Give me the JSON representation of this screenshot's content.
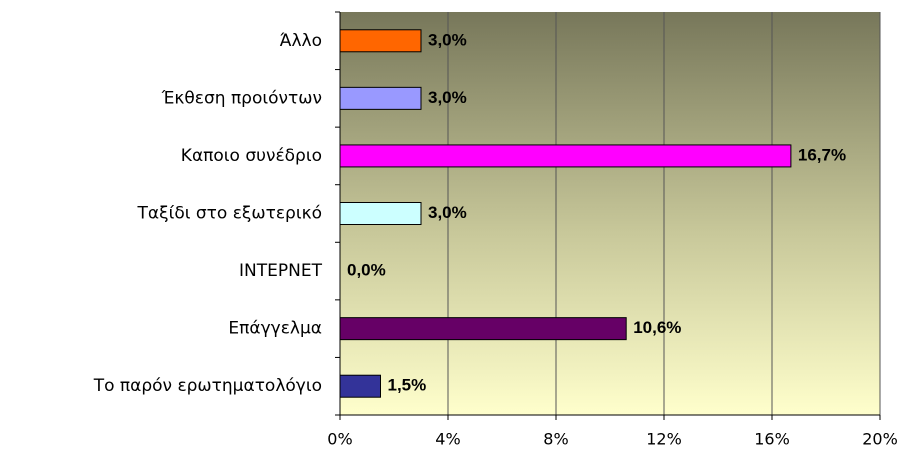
{
  "chart_data": {
    "type": "barh",
    "categories": [
      "Άλλο",
      "Έκθεση προιόντων",
      "Καποιο συνέδριο",
      "Ταξίδι στο εξωτερικό",
      "INTEPNET",
      "Επάγγελμα",
      "Το παρόν ερωτηματολόγιο"
    ],
    "values": [
      3.0,
      3.0,
      16.7,
      3.0,
      0.0,
      10.6,
      1.5
    ],
    "value_labels": [
      "3,0%",
      "3,0%",
      "16,7%",
      "3,0%",
      "0,0%",
      "10,6%",
      "1,5%"
    ],
    "colors": [
      "#ff6600",
      "#9999ff",
      "#ff00ff",
      "#ccffff",
      "#ffff99",
      "#660066",
      "#333399"
    ],
    "xlim": [
      0,
      20
    ],
    "xticks": [
      {
        "value": 0,
        "label": "0%"
      },
      {
        "value": 4,
        "label": "4%"
      },
      {
        "value": 8,
        "label": "8%"
      },
      {
        "value": 12,
        "label": "12%"
      },
      {
        "value": 16,
        "label": "16%"
      },
      {
        "value": 20,
        "label": "20%"
      }
    ],
    "grid": true
  }
}
